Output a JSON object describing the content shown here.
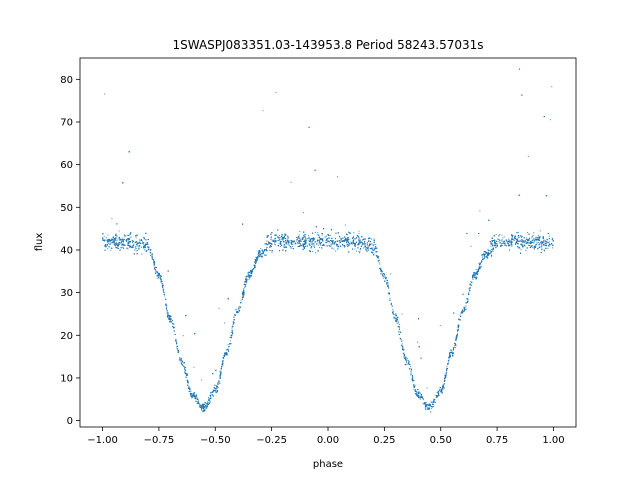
{
  "chart_data": {
    "type": "scatter",
    "title": "1SWASPJ083351.03-143953.8 Period 58243.57031s",
    "xlabel": "phase",
    "ylabel": "flux",
    "xlim": [
      -1.1,
      1.1
    ],
    "ylim": [
      -1.5,
      85
    ],
    "x_ticks": [
      -1.0,
      -0.75,
      -0.5,
      -0.25,
      0.0,
      0.25,
      0.5,
      0.75,
      1.0
    ],
    "x_tick_labels": [
      "−1.00",
      "−0.75",
      "−0.50",
      "−0.25",
      "0.00",
      "0.25",
      "0.50",
      "0.75",
      "1.00"
    ],
    "y_ticks": [
      0,
      10,
      20,
      30,
      40,
      50,
      60,
      70,
      80
    ],
    "y_tick_labels": [
      "0",
      "10",
      "20",
      "30",
      "40",
      "50",
      "60",
      "70",
      "80"
    ],
    "grid": false,
    "legend": "none",
    "series": [
      {
        "color": "#1f77b4",
        "baseline_flux": 42,
        "minima": [
          {
            "phase": -0.55,
            "flux": 3
          },
          {
            "phase": 0.45,
            "flux": 3
          }
        ],
        "x": [
          -1.0,
          -0.9,
          -0.8,
          -0.75,
          -0.7,
          -0.65,
          -0.6,
          -0.55,
          -0.5,
          -0.45,
          -0.4,
          -0.35,
          -0.3,
          -0.25,
          -0.2,
          -0.1,
          0.0,
          0.1,
          0.2,
          0.25,
          0.3,
          0.35,
          0.4,
          0.45,
          0.5,
          0.55,
          0.6,
          0.65,
          0.7,
          0.75,
          0.8,
          0.9,
          1.0
        ],
        "y": [
          42,
          42,
          41,
          34,
          24,
          14,
          6,
          3,
          7,
          16,
          26,
          34,
          39,
          42,
          42,
          42,
          42,
          42,
          41,
          34,
          24,
          14,
          6,
          3,
          7,
          16,
          26,
          34,
          39,
          42,
          42,
          42,
          42
        ]
      }
    ]
  }
}
